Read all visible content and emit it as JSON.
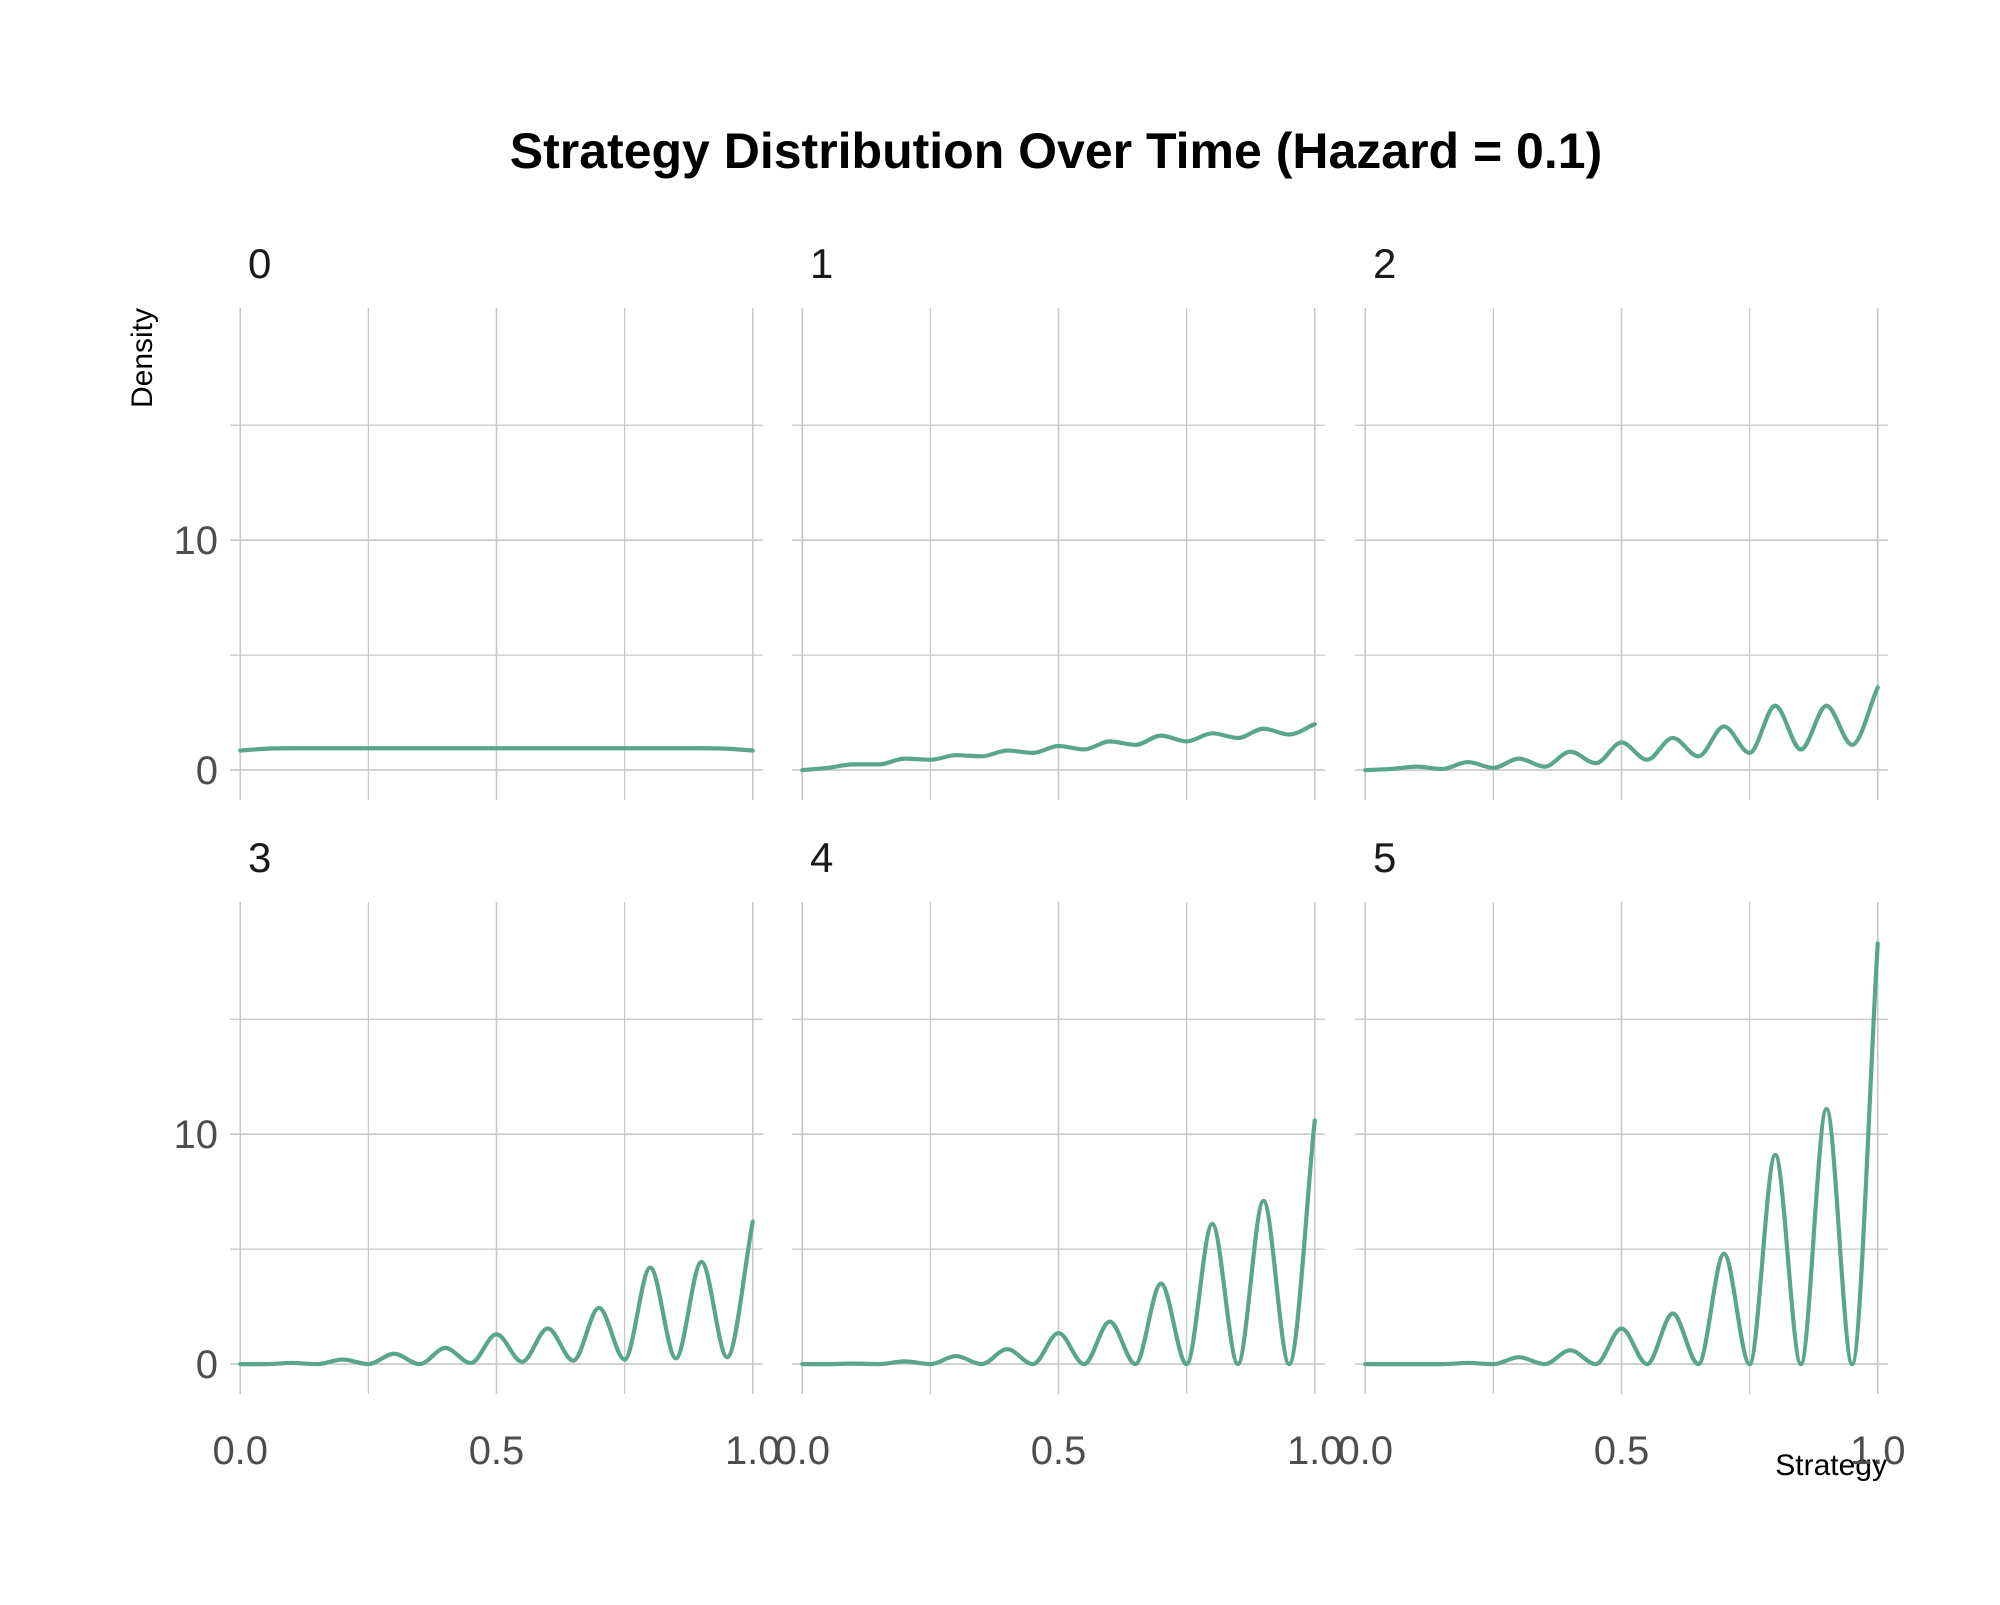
{
  "chart_data": {
    "type": "line",
    "title": "Strategy Distribution Over Time (Hazard = 0.1)",
    "xlabel": "Strategy",
    "ylabel": "Density",
    "xlim": [
      -0.02,
      1.02
    ],
    "ylim": [
      -1.3,
      20.1
    ],
    "x_ticks": [
      0.0,
      0.5,
      1.0
    ],
    "x_tick_labels": [
      "0.0",
      "0.5",
      "1.0"
    ],
    "x_minor_ticks": [
      0.25,
      0.75
    ],
    "y_ticks": [
      0,
      10
    ],
    "y_tick_labels": [
      "0",
      "10"
    ],
    "y_minor_ticks": [
      5,
      15
    ],
    "grid": true,
    "line_color": "#5aa58e",
    "facets": [
      {
        "label": "0",
        "x": [
          0.0,
          0.05,
          0.1,
          0.15,
          0.2,
          0.25,
          0.3,
          0.35,
          0.4,
          0.45,
          0.5,
          0.55,
          0.6,
          0.65,
          0.7,
          0.75,
          0.8,
          0.85,
          0.9,
          0.95,
          1.0
        ],
        "y": [
          0.85,
          0.93,
          0.95,
          0.95,
          0.95,
          0.95,
          0.95,
          0.95,
          0.95,
          0.95,
          0.95,
          0.95,
          0.95,
          0.95,
          0.95,
          0.95,
          0.95,
          0.95,
          0.95,
          0.93,
          0.85
        ]
      },
      {
        "label": "1",
        "x": [
          0.0,
          0.05,
          0.1,
          0.15,
          0.2,
          0.25,
          0.3,
          0.35,
          0.4,
          0.45,
          0.5,
          0.55,
          0.6,
          0.65,
          0.7,
          0.75,
          0.8,
          0.85,
          0.9,
          0.95,
          1.0
        ],
        "y": [
          0.0,
          0.1,
          0.25,
          0.25,
          0.5,
          0.45,
          0.65,
          0.6,
          0.85,
          0.75,
          1.05,
          0.9,
          1.25,
          1.1,
          1.5,
          1.25,
          1.6,
          1.4,
          1.8,
          1.55,
          2.0
        ]
      },
      {
        "label": "2",
        "x": [
          0.0,
          0.05,
          0.1,
          0.15,
          0.2,
          0.25,
          0.3,
          0.35,
          0.4,
          0.45,
          0.5,
          0.55,
          0.6,
          0.65,
          0.7,
          0.75,
          0.8,
          0.85,
          0.9,
          0.95,
          1.0
        ],
        "y": [
          0.0,
          0.05,
          0.15,
          0.05,
          0.35,
          0.1,
          0.5,
          0.15,
          0.8,
          0.3,
          1.2,
          0.45,
          1.4,
          0.6,
          1.9,
          0.75,
          2.8,
          0.9,
          2.8,
          1.1,
          3.6
        ]
      },
      {
        "label": "3",
        "x": [
          0.0,
          0.05,
          0.1,
          0.15,
          0.2,
          0.25,
          0.3,
          0.35,
          0.4,
          0.45,
          0.5,
          0.55,
          0.6,
          0.65,
          0.7,
          0.75,
          0.8,
          0.85,
          0.9,
          0.95,
          1.0
        ],
        "y": [
          0.0,
          0.0,
          0.05,
          0.0,
          0.2,
          0.0,
          0.45,
          0.0,
          0.7,
          0.05,
          1.3,
          0.1,
          1.55,
          0.15,
          2.45,
          0.2,
          4.2,
          0.25,
          4.45,
          0.3,
          6.2
        ]
      },
      {
        "label": "4",
        "x": [
          0.0,
          0.05,
          0.1,
          0.15,
          0.2,
          0.25,
          0.3,
          0.35,
          0.4,
          0.45,
          0.5,
          0.55,
          0.6,
          0.65,
          0.7,
          0.75,
          0.8,
          0.85,
          0.9,
          0.95,
          1.0
        ],
        "y": [
          0.0,
          0.0,
          0.02,
          0.0,
          0.12,
          0.0,
          0.35,
          0.0,
          0.65,
          0.0,
          1.35,
          0.0,
          1.85,
          0.0,
          3.5,
          0.0,
          6.1,
          0.0,
          7.1,
          0.0,
          10.6
        ]
      },
      {
        "label": "5",
        "x": [
          0.0,
          0.05,
          0.1,
          0.15,
          0.2,
          0.25,
          0.3,
          0.35,
          0.4,
          0.45,
          0.5,
          0.55,
          0.6,
          0.65,
          0.7,
          0.75,
          0.8,
          0.85,
          0.9,
          0.95,
          1.0
        ],
        "y": [
          0.0,
          0.0,
          0.0,
          0.0,
          0.05,
          0.0,
          0.3,
          0.0,
          0.6,
          0.0,
          1.55,
          0.0,
          2.2,
          0.0,
          4.8,
          0.0,
          9.1,
          0.0,
          11.1,
          0.0,
          18.3
        ]
      }
    ]
  }
}
